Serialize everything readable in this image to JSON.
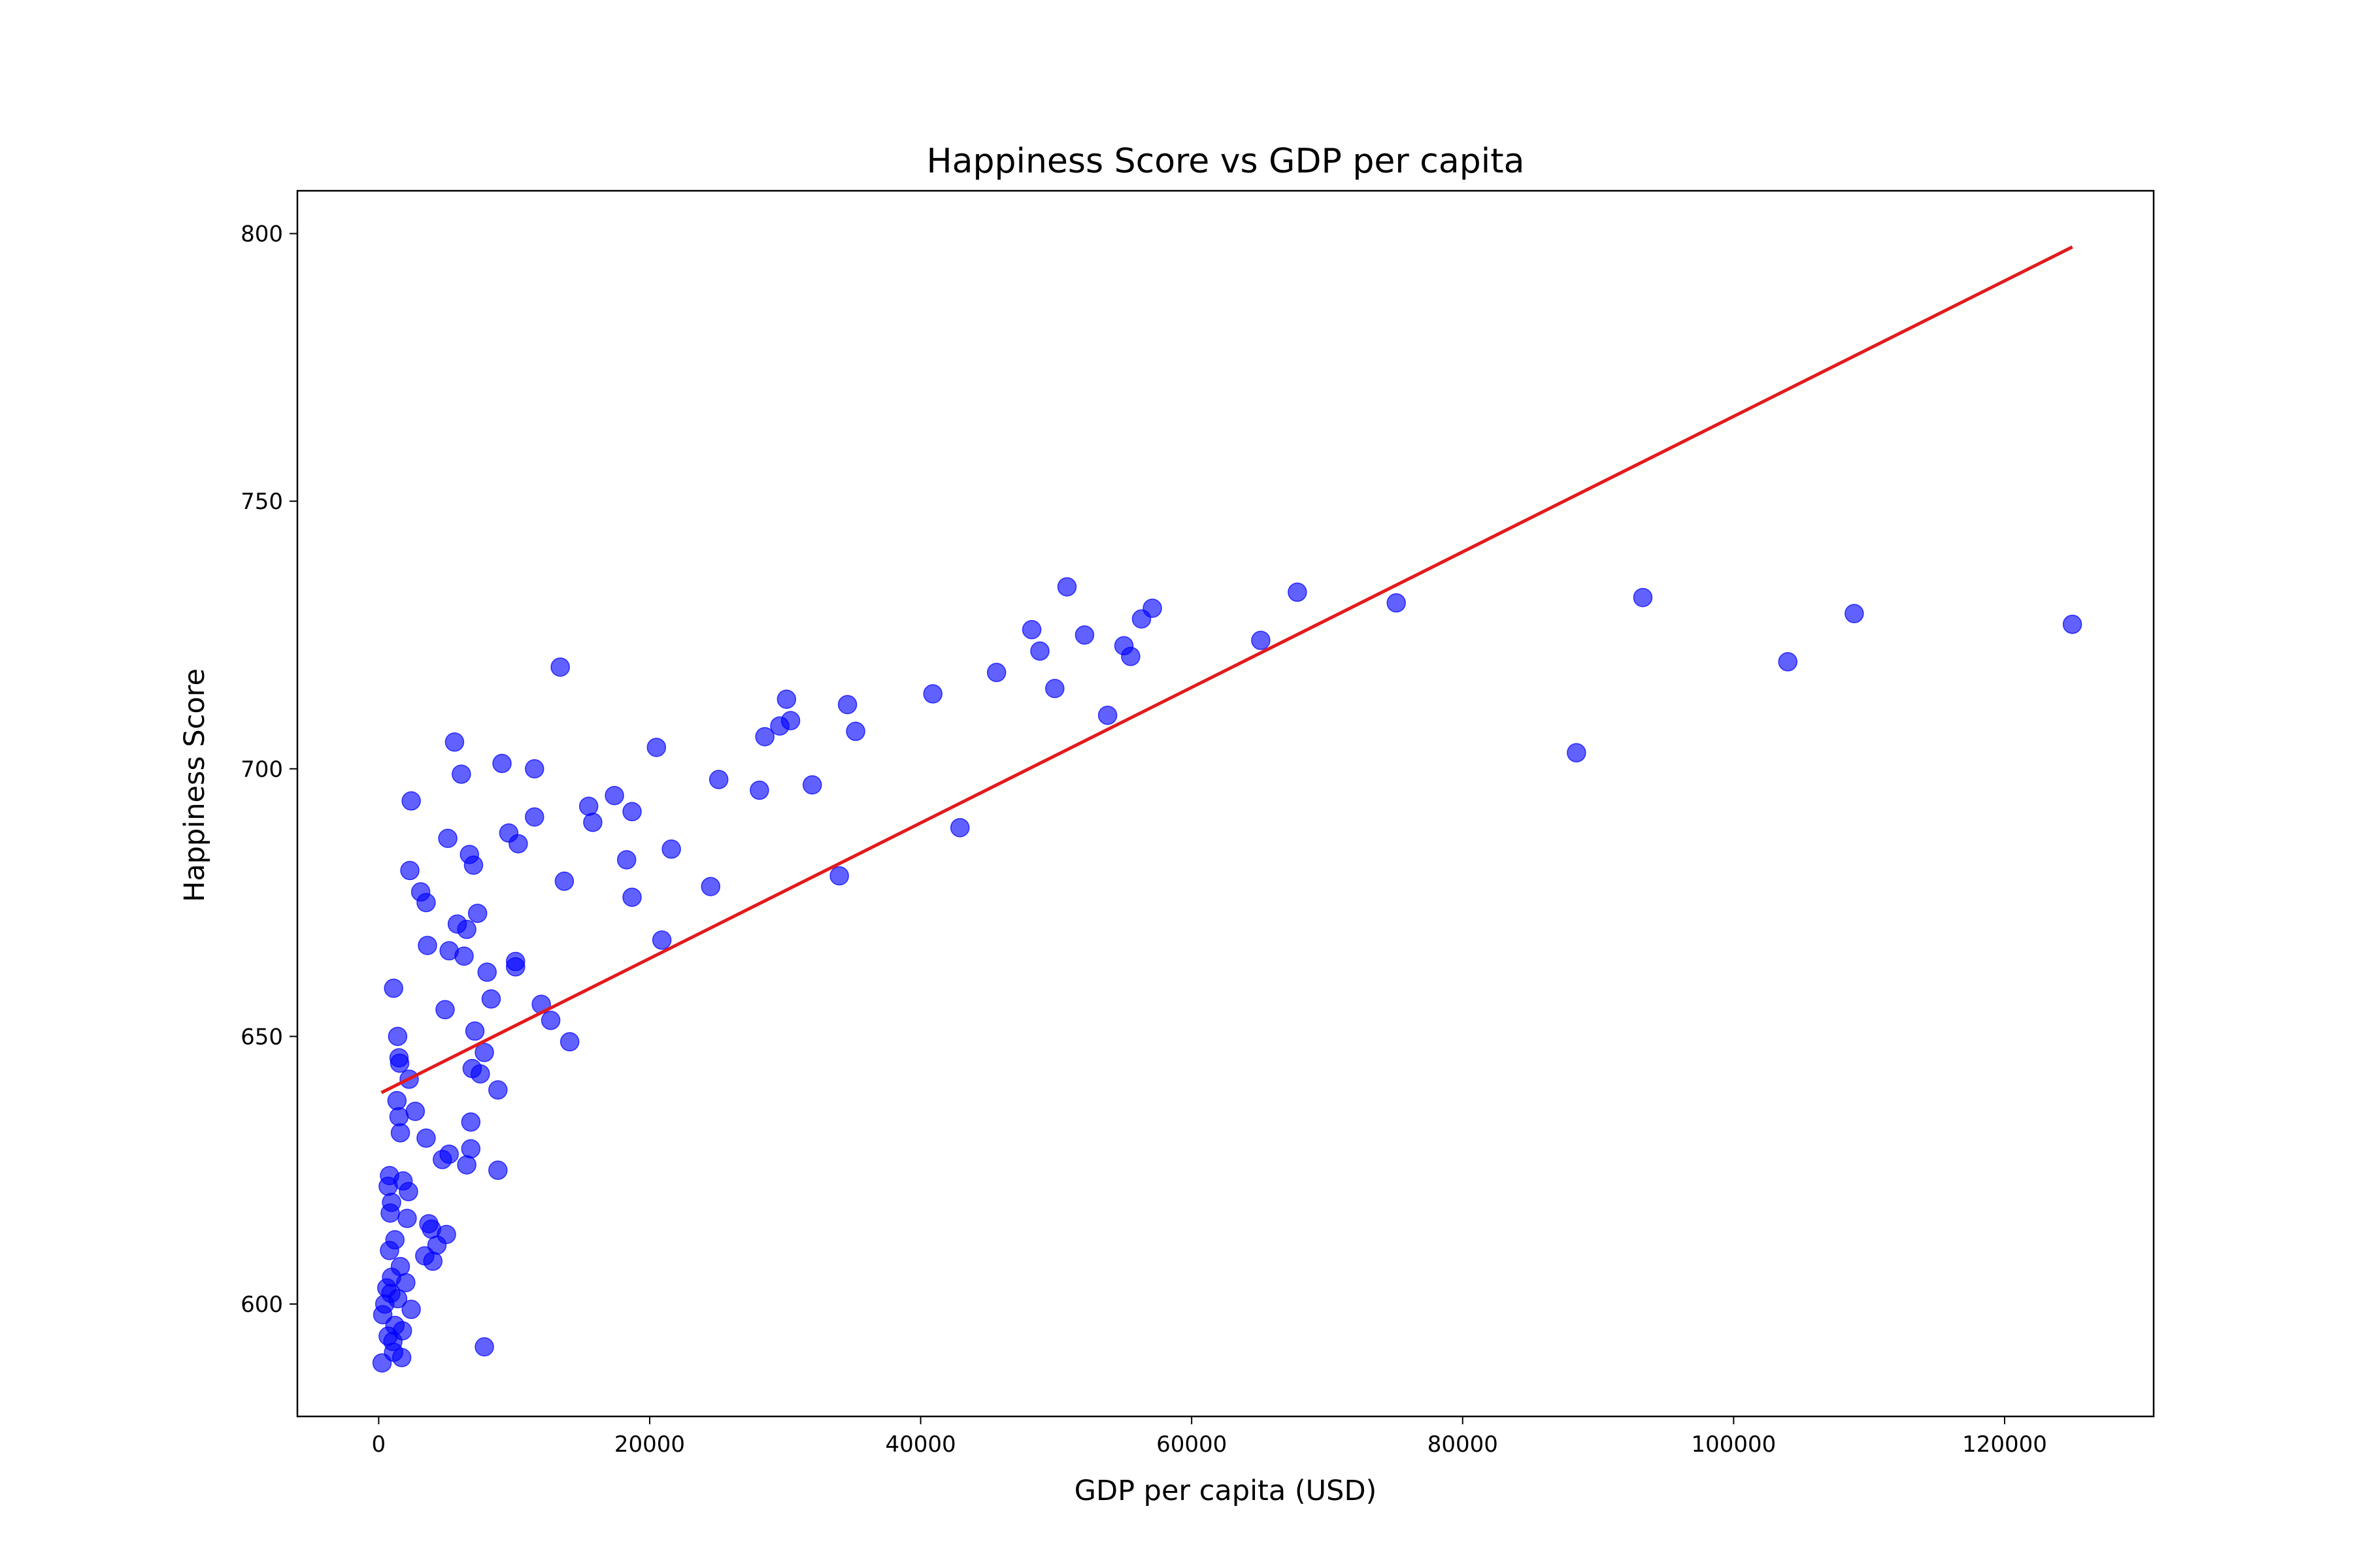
{
  "chart_data": {
    "type": "scatter",
    "title": "Happiness Score vs GDP per capita",
    "xlabel": "GDP per capita (USD)",
    "ylabel": "Happiness Score",
    "xlim": [
      -6000,
      131000
    ],
    "ylim": [
      579,
      808
    ],
    "xticks": [
      0,
      20000,
      40000,
      60000,
      80000,
      100000,
      120000
    ],
    "yticks": [
      600,
      650,
      700,
      750,
      800
    ],
    "grid": false,
    "legend": "none",
    "colors": {
      "points": "#0000ff",
      "trend_line": "#e31a1c",
      "axes": "#000000"
    },
    "trend_line": {
      "x": [
        200,
        125000
      ],
      "y": [
        639.5,
        797.5
      ]
    },
    "points": [
      {
        "x": 250,
        "y": 589
      },
      {
        "x": 300,
        "y": 598
      },
      {
        "x": 450,
        "y": 600
      },
      {
        "x": 600,
        "y": 603
      },
      {
        "x": 700,
        "y": 594
      },
      {
        "x": 800,
        "y": 610
      },
      {
        "x": 700,
        "y": 622
      },
      {
        "x": 800,
        "y": 624
      },
      {
        "x": 850,
        "y": 617
      },
      {
        "x": 950,
        "y": 619
      },
      {
        "x": 900,
        "y": 602
      },
      {
        "x": 950,
        "y": 605
      },
      {
        "x": 1050,
        "y": 593
      },
      {
        "x": 1100,
        "y": 591
      },
      {
        "x": 1200,
        "y": 596
      },
      {
        "x": 1200,
        "y": 612
      },
      {
        "x": 1100,
        "y": 659
      },
      {
        "x": 1350,
        "y": 638
      },
      {
        "x": 1400,
        "y": 650
      },
      {
        "x": 1500,
        "y": 646
      },
      {
        "x": 1550,
        "y": 645
      },
      {
        "x": 1500,
        "y": 635
      },
      {
        "x": 1600,
        "y": 632
      },
      {
        "x": 1400,
        "y": 601
      },
      {
        "x": 1600,
        "y": 607
      },
      {
        "x": 1700,
        "y": 590
      },
      {
        "x": 1750,
        "y": 595
      },
      {
        "x": 1800,
        "y": 623
      },
      {
        "x": 2000,
        "y": 604
      },
      {
        "x": 2100,
        "y": 616
      },
      {
        "x": 2200,
        "y": 621
      },
      {
        "x": 2250,
        "y": 642
      },
      {
        "x": 2300,
        "y": 681
      },
      {
        "x": 2400,
        "y": 694
      },
      {
        "x": 2400,
        "y": 599
      },
      {
        "x": 2700,
        "y": 636
      },
      {
        "x": 3100,
        "y": 677
      },
      {
        "x": 3500,
        "y": 675
      },
      {
        "x": 3500,
        "y": 631
      },
      {
        "x": 3400,
        "y": 609
      },
      {
        "x": 3600,
        "y": 667
      },
      {
        "x": 3700,
        "y": 615
      },
      {
        "x": 3900,
        "y": 614
      },
      {
        "x": 4000,
        "y": 608
      },
      {
        "x": 4300,
        "y": 611
      },
      {
        "x": 4700,
        "y": 627
      },
      {
        "x": 4900,
        "y": 655
      },
      {
        "x": 5000,
        "y": 613
      },
      {
        "x": 5100,
        "y": 687
      },
      {
        "x": 5200,
        "y": 666
      },
      {
        "x": 5200,
        "y": 628
      },
      {
        "x": 5600,
        "y": 705
      },
      {
        "x": 5800,
        "y": 671
      },
      {
        "x": 6100,
        "y": 699
      },
      {
        "x": 6300,
        "y": 665
      },
      {
        "x": 6500,
        "y": 670
      },
      {
        "x": 6700,
        "y": 684
      },
      {
        "x": 6500,
        "y": 626
      },
      {
        "x": 6800,
        "y": 629
      },
      {
        "x": 6800,
        "y": 634
      },
      {
        "x": 6900,
        "y": 644
      },
      {
        "x": 7000,
        "y": 682
      },
      {
        "x": 7100,
        "y": 651
      },
      {
        "x": 7300,
        "y": 673
      },
      {
        "x": 7500,
        "y": 643
      },
      {
        "x": 7800,
        "y": 647
      },
      {
        "x": 7800,
        "y": 592
      },
      {
        "x": 8000,
        "y": 662
      },
      {
        "x": 8300,
        "y": 657
      },
      {
        "x": 8800,
        "y": 640
      },
      {
        "x": 8800,
        "y": 625
      },
      {
        "x": 9100,
        "y": 701
      },
      {
        "x": 9600,
        "y": 688
      },
      {
        "x": 10100,
        "y": 664
      },
      {
        "x": 10100,
        "y": 663
      },
      {
        "x": 10300,
        "y": 686
      },
      {
        "x": 11500,
        "y": 700
      },
      {
        "x": 11500,
        "y": 691
      },
      {
        "x": 12000,
        "y": 656
      },
      {
        "x": 12700,
        "y": 653
      },
      {
        "x": 13400,
        "y": 719
      },
      {
        "x": 13700,
        "y": 679
      },
      {
        "x": 14100,
        "y": 649
      },
      {
        "x": 15500,
        "y": 693
      },
      {
        "x": 15800,
        "y": 690
      },
      {
        "x": 17400,
        "y": 695
      },
      {
        "x": 18300,
        "y": 683
      },
      {
        "x": 18700,
        "y": 692
      },
      {
        "x": 18700,
        "y": 676
      },
      {
        "x": 20500,
        "y": 704
      },
      {
        "x": 20900,
        "y": 668
      },
      {
        "x": 21600,
        "y": 685
      },
      {
        "x": 24500,
        "y": 678
      },
      {
        "x": 25100,
        "y": 698
      },
      {
        "x": 28100,
        "y": 696
      },
      {
        "x": 28500,
        "y": 706
      },
      {
        "x": 29600,
        "y": 708
      },
      {
        "x": 30100,
        "y": 713
      },
      {
        "x": 30400,
        "y": 709
      },
      {
        "x": 32000,
        "y": 697
      },
      {
        "x": 34000,
        "y": 680
      },
      {
        "x": 34600,
        "y": 712
      },
      {
        "x": 35200,
        "y": 707
      },
      {
        "x": 40900,
        "y": 714
      },
      {
        "x": 42900,
        "y": 689
      },
      {
        "x": 45600,
        "y": 718
      },
      {
        "x": 48200,
        "y": 726
      },
      {
        "x": 48800,
        "y": 722
      },
      {
        "x": 49900,
        "y": 715
      },
      {
        "x": 50800,
        "y": 734
      },
      {
        "x": 52100,
        "y": 725
      },
      {
        "x": 53800,
        "y": 710
      },
      {
        "x": 55000,
        "y": 723
      },
      {
        "x": 55500,
        "y": 721
      },
      {
        "x": 56300,
        "y": 728
      },
      {
        "x": 57100,
        "y": 730
      },
      {
        "x": 65100,
        "y": 724
      },
      {
        "x": 67800,
        "y": 733
      },
      {
        "x": 75100,
        "y": 731
      },
      {
        "x": 88400,
        "y": 703
      },
      {
        "x": 93300,
        "y": 732
      },
      {
        "x": 104000,
        "y": 720
      },
      {
        "x": 108900,
        "y": 729
      },
      {
        "x": 125000,
        "y": 727
      }
    ]
  }
}
